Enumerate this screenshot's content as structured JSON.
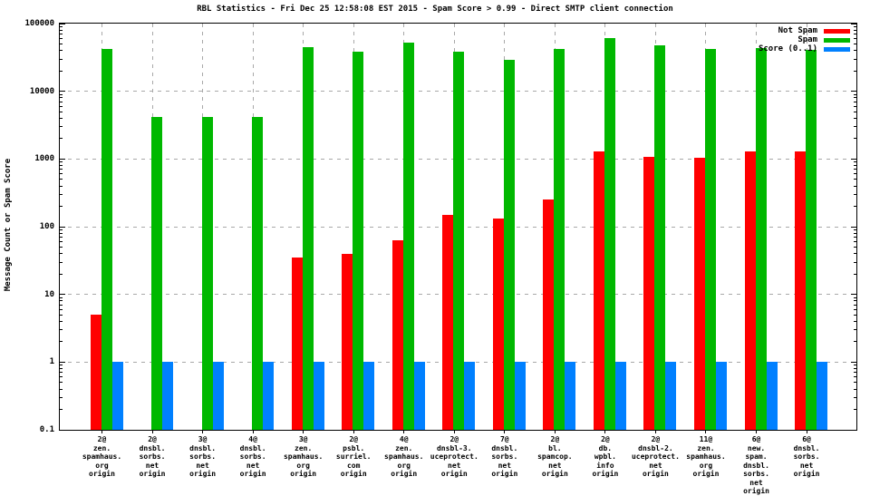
{
  "title": "RBL Statistics - Fri Dec 25 12:58:08 EST 2015 - Spam Score > 0.99 - Direct SMTP client connection",
  "chart_data": {
    "type": "bar",
    "y_scale": "log",
    "title": "RBL Statistics - Fri Dec 25 12:58:08 EST 2015 - Spam Score > 0.99 - Direct SMTP client connection",
    "xlabel": "",
    "ylabel": "Message Count or Spam Score",
    "ylim": [
      0.1,
      100000
    ],
    "ytick_labels": [
      "100000",
      "10000",
      "1000",
      "100",
      "10",
      "1",
      "0.1"
    ],
    "grid": true,
    "legend_position": "top-right-inside",
    "categories": [
      [
        "2@",
        "zen.",
        "spamhaus.",
        "org",
        "origin"
      ],
      [
        "2@",
        "dnsbl.",
        "sorbs.",
        "net",
        "origin"
      ],
      [
        "3@",
        "dnsbl.",
        "sorbs.",
        "net",
        "origin"
      ],
      [
        "4@",
        "dnsbl.",
        "sorbs.",
        "net",
        "origin"
      ],
      [
        "3@",
        "zen.",
        "spamhaus.",
        "org",
        "origin"
      ],
      [
        "2@",
        "psbl.",
        "surriel.",
        "com",
        "origin"
      ],
      [
        "4@",
        "zen.",
        "spamhaus.",
        "org",
        "origin"
      ],
      [
        "2@",
        "dnsbl-3.",
        "uceprotect.",
        "net",
        "origin"
      ],
      [
        "7@",
        "dnsbl.",
        "sorbs.",
        "net",
        "origin"
      ],
      [
        "2@",
        "bl.",
        "spamcop.",
        "net",
        "origin"
      ],
      [
        "2@",
        "db.",
        "wpbl.",
        "info",
        "origin"
      ],
      [
        "2@",
        "dnsbl-2.",
        "uceprotect.",
        "net",
        "origin"
      ],
      [
        "11@",
        "zen.",
        "spamhaus.",
        "org",
        "origin"
      ],
      [
        "6@",
        "new.",
        "spam.",
        "dnsbl.",
        "sorbs.",
        "net",
        "origin"
      ],
      [
        "6@",
        "dnsbl.",
        "sorbs.",
        "net",
        "origin"
      ]
    ],
    "series": [
      {
        "name": "Not Spam",
        "color": "#ff0000",
        "values": [
          5,
          0,
          0,
          0,
          35,
          40,
          63,
          150,
          130,
          250,
          1300,
          1090,
          1030,
          1300,
          1300
        ]
      },
      {
        "name": "Spam",
        "color": "#00b800",
        "values": [
          42000,
          4200,
          4200,
          4200,
          45000,
          38000,
          52000,
          38000,
          29000,
          42000,
          62000,
          48000,
          42000,
          43000,
          41000
        ]
      },
      {
        "name": "Score (0..1)",
        "color": "#0080ff",
        "values": [
          1,
          1,
          1,
          1,
          1,
          1,
          1,
          1,
          1,
          1,
          1,
          1,
          1,
          1,
          1
        ]
      }
    ]
  }
}
